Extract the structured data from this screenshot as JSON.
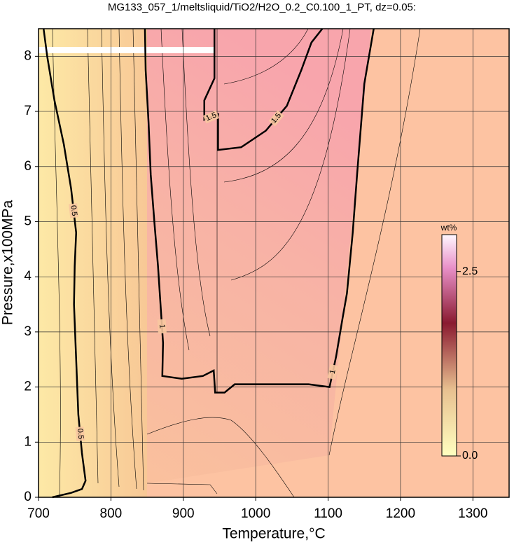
{
  "chart_data": {
    "type": "contour",
    "title": "MG133_057_1/meltsliquid/TiO2/H2O_0.2_C0.100_1_PT, dz=0.05:",
    "x_label": "Temperature,°C",
    "y_label": "Pressure,x100MPa",
    "xlim": [
      700,
      1350
    ],
    "ylim": [
      0,
      8.5
    ],
    "xticks": [
      700,
      800,
      900,
      1000,
      1100,
      1200,
      1300
    ],
    "yticks": [
      0,
      1,
      2,
      3,
      4,
      5,
      6,
      7,
      8
    ],
    "grid": true,
    "line_color": "#000000",
    "contours": [
      {
        "level": 0.5,
        "x": [
          707,
          712,
          722,
          735,
          745,
          752,
          750,
          749,
          752,
          755,
          760,
          765,
          760,
          745,
          719
        ],
        "y": [
          8.5,
          8.0,
          7.2,
          6.4,
          5.6,
          4.8,
          4.2,
          3.5,
          2.5,
          1.5,
          0.8,
          0.3,
          0.15,
          0.08,
          0
        ]
      },
      {
        "level": 1,
        "x": [
          847,
          848,
          852,
          855,
          860,
          865,
          869,
          872,
          871,
          898,
          927,
          942,
          944,
          957,
          971,
          1073,
          1102,
          1111,
          1120,
          1126,
          1134,
          1140,
          1150,
          1163
        ],
        "y": [
          8.5,
          7.75,
          6.8,
          5.85,
          5.0,
          4.2,
          3.4,
          2.8,
          2.2,
          2.15,
          2.2,
          2.3,
          1.9,
          1.9,
          2.05,
          2.05,
          2.0,
          2.55,
          3.25,
          3.7,
          4.8,
          5.85,
          7.5,
          8.5
        ]
      },
      {
        "level": 1.5,
        "x": [
          943,
          943,
          929,
          929,
          948,
          948,
          980,
          1014,
          1043,
          1063,
          1077,
          1092
        ],
        "y": [
          8.5,
          7.6,
          7.2,
          6.85,
          6.95,
          6.3,
          6.35,
          6.65,
          7.1,
          7.75,
          8.25,
          8.5
        ]
      }
    ],
    "colorbar": {
      "label": "wt%",
      "lim": [
        0,
        3
      ],
      "ticks": [
        {
          "value": 0,
          "label": "0.0"
        },
        {
          "value": 2.5,
          "label": "2.5"
        }
      ]
    }
  }
}
